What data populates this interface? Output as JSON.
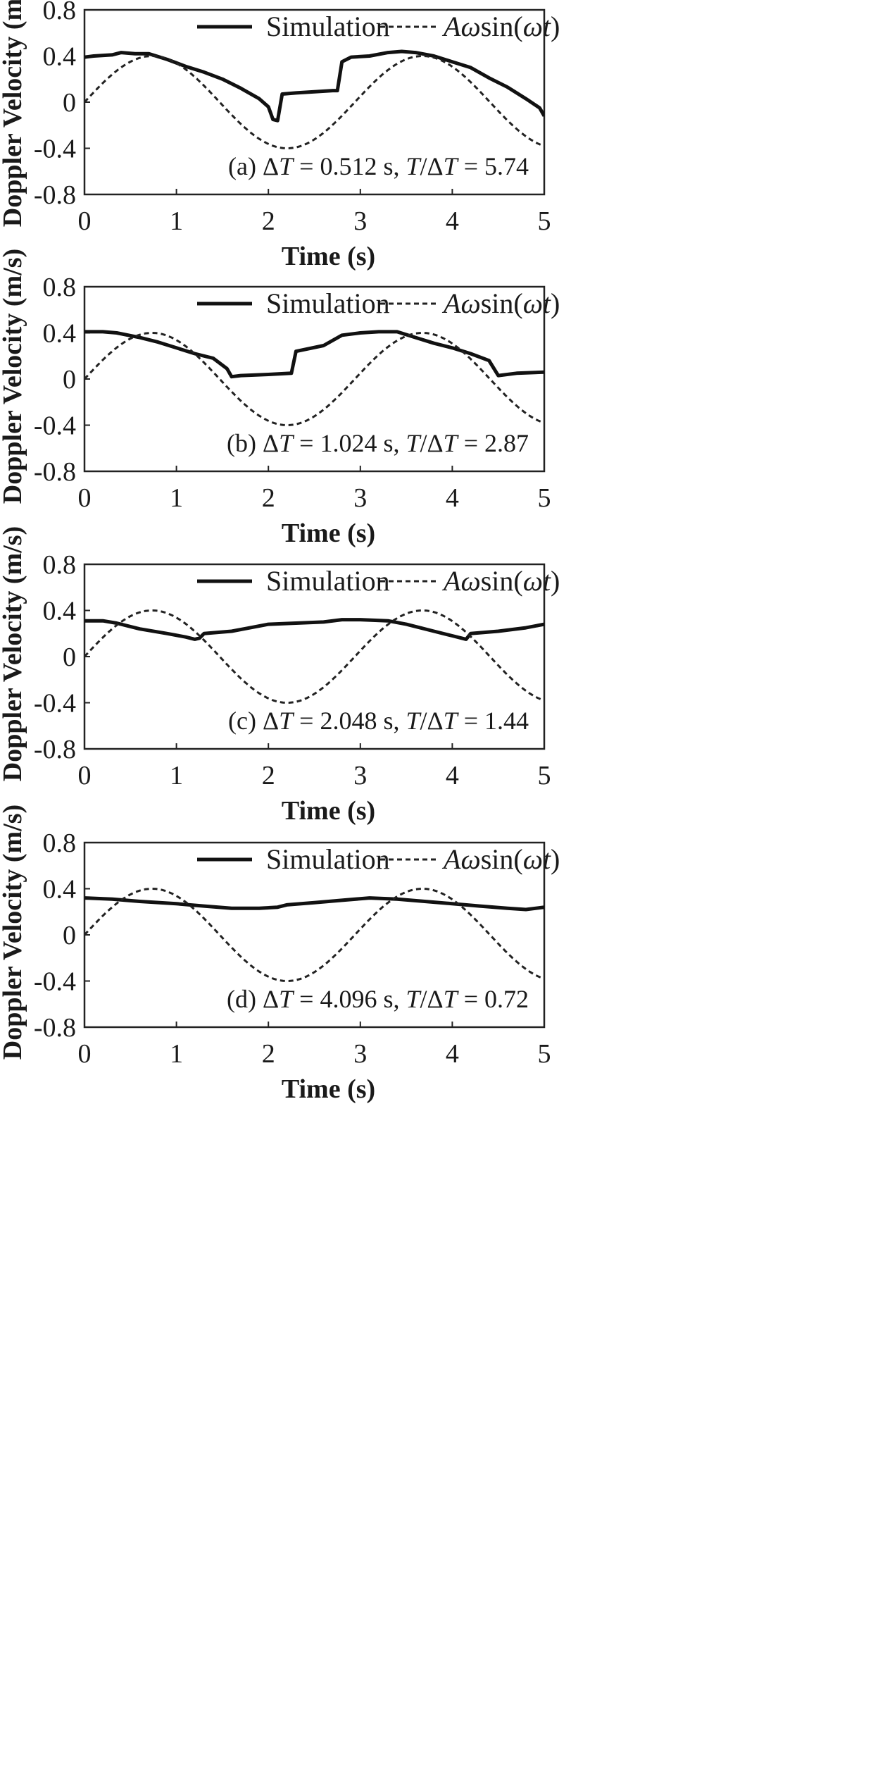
{
  "figure": {
    "legend": {
      "solid_label": "Simulation",
      "dashed_label_parts": [
        {
          "text": "A",
          "italic": true
        },
        {
          "text": "ω",
          "italic": true
        },
        {
          "text": "sin(",
          "italic": false
        },
        {
          "text": "ωt",
          "italic": true
        },
        {
          "text": ")",
          "italic": false
        }
      ]
    },
    "colors": {
      "simulation": "#111111",
      "reference": "#222222",
      "frame": "#222222"
    }
  },
  "chart_data": [
    {
      "type": "line",
      "xlabel": "Time (s)",
      "ylabel": "Doppler Velocity (m/s)",
      "xlim": [
        0,
        5
      ],
      "ylim": [
        -0.8,
        0.8
      ],
      "xticks": [
        "0",
        "1",
        "2",
        "3",
        "4",
        "5"
      ],
      "yticks": [
        "0.8",
        "0.4",
        "0",
        "-0.4",
        "-0.8"
      ],
      "grid": false,
      "legend_position": "top",
      "annotation": "(a) ΔT = 0.512 s, T/ΔT = 5.74",
      "annotation_parts": [
        {
          "text": "(a) ",
          "italic": false
        },
        {
          "text": "Δ",
          "italic": false
        },
        {
          "text": "T",
          "italic": true
        },
        {
          "text": " = 0.512 s, ",
          "italic": false
        },
        {
          "text": "T",
          "italic": true
        },
        {
          "text": "/Δ",
          "italic": false
        },
        {
          "text": "T",
          "italic": true
        },
        {
          "text": " = 5.74",
          "italic": false
        }
      ],
      "series": [
        {
          "name": "Simulation",
          "style": "solid",
          "x": [
            0,
            0.1,
            0.3,
            0.4,
            0.55,
            0.7,
            0.9,
            1.1,
            1.3,
            1.5,
            1.7,
            1.9,
            2.0,
            2.05,
            2.1,
            2.15,
            2.3,
            2.5,
            2.7,
            2.75,
            2.8,
            2.9,
            3.1,
            3.3,
            3.45,
            3.6,
            3.8,
            4.0,
            4.2,
            4.4,
            4.6,
            4.8,
            4.95,
            5.0
          ],
          "y": [
            0.39,
            0.4,
            0.41,
            0.43,
            0.42,
            0.42,
            0.37,
            0.31,
            0.26,
            0.2,
            0.12,
            0.03,
            -0.04,
            -0.15,
            -0.16,
            0.07,
            0.08,
            0.09,
            0.1,
            0.1,
            0.35,
            0.39,
            0.4,
            0.43,
            0.44,
            0.43,
            0.4,
            0.35,
            0.3,
            0.21,
            0.13,
            0.03,
            -0.05,
            -0.12
          ]
        },
        {
          "name": "Aωsin(ωt)",
          "style": "dashed",
          "amplitude": 0.4,
          "period_s": 2.94
        }
      ]
    },
    {
      "type": "line",
      "xlabel": "Time (s)",
      "ylabel": "Doppler Velocity (m/s)",
      "xlim": [
        0,
        5
      ],
      "ylim": [
        -0.8,
        0.8
      ],
      "xticks": [
        "0",
        "1",
        "2",
        "3",
        "4",
        "5"
      ],
      "yticks": [
        "0.8",
        "0.4",
        "0",
        "-0.4",
        "-0.8"
      ],
      "grid": false,
      "legend_position": "top",
      "annotation": "(b) ΔT = 1.024 s, T/ΔT = 2.87",
      "annotation_parts": [
        {
          "text": "(b) ",
          "italic": false
        },
        {
          "text": "Δ",
          "italic": false
        },
        {
          "text": "T",
          "italic": true
        },
        {
          "text": " = 1.024 s, ",
          "italic": false
        },
        {
          "text": "T",
          "italic": true
        },
        {
          "text": "/Δ",
          "italic": false
        },
        {
          "text": "T",
          "italic": true
        },
        {
          "text": " = 2.87",
          "italic": false
        }
      ],
      "series": [
        {
          "name": "Simulation",
          "style": "solid",
          "x": [
            0,
            0.2,
            0.35,
            0.6,
            0.8,
            1.0,
            1.2,
            1.4,
            1.55,
            1.6,
            1.7,
            2.0,
            2.25,
            2.3,
            2.6,
            2.8,
            3.0,
            3.2,
            3.4,
            3.6,
            3.8,
            4.0,
            4.2,
            4.4,
            4.5,
            4.7,
            5.0
          ],
          "y": [
            0.41,
            0.41,
            0.4,
            0.36,
            0.32,
            0.27,
            0.22,
            0.18,
            0.09,
            0.02,
            0.03,
            0.04,
            0.05,
            0.24,
            0.29,
            0.38,
            0.4,
            0.41,
            0.41,
            0.36,
            0.31,
            0.27,
            0.22,
            0.16,
            0.03,
            0.05,
            0.06
          ]
        },
        {
          "name": "Aωsin(ωt)",
          "style": "dashed",
          "amplitude": 0.4,
          "period_s": 2.94
        }
      ]
    },
    {
      "type": "line",
      "xlabel": "Time (s)",
      "ylabel": "Doppler Velocity (m/s)",
      "xlim": [
        0,
        5
      ],
      "ylim": [
        -0.8,
        0.8
      ],
      "xticks": [
        "0",
        "1",
        "2",
        "3",
        "4",
        "5"
      ],
      "yticks": [
        "0.8",
        "0.4",
        "0",
        "-0.4",
        "-0.8"
      ],
      "grid": false,
      "legend_position": "top",
      "annotation": "(c) ΔT = 2.048 s, T/ΔT = 1.44",
      "annotation_parts": [
        {
          "text": "(c) ",
          "italic": false
        },
        {
          "text": "Δ",
          "italic": false
        },
        {
          "text": "T",
          "italic": true
        },
        {
          "text": " = 2.048 s, ",
          "italic": false
        },
        {
          "text": "T",
          "italic": true
        },
        {
          "text": "/Δ",
          "italic": false
        },
        {
          "text": "T",
          "italic": true
        },
        {
          "text": " = 1.44",
          "italic": false
        }
      ],
      "series": [
        {
          "name": "Simulation",
          "style": "solid",
          "x": [
            0,
            0.2,
            0.35,
            0.6,
            0.9,
            1.1,
            1.2,
            1.25,
            1.3,
            1.6,
            1.8,
            2.0,
            2.3,
            2.6,
            2.8,
            3.0,
            3.3,
            3.5,
            3.8,
            4.0,
            4.15,
            4.2,
            4.5,
            4.8,
            5.0
          ],
          "y": [
            0.31,
            0.31,
            0.29,
            0.24,
            0.2,
            0.17,
            0.15,
            0.16,
            0.2,
            0.22,
            0.25,
            0.28,
            0.29,
            0.3,
            0.32,
            0.32,
            0.31,
            0.28,
            0.22,
            0.18,
            0.15,
            0.2,
            0.22,
            0.25,
            0.28
          ]
        },
        {
          "name": "Aωsin(ωt)",
          "style": "dashed",
          "amplitude": 0.4,
          "period_s": 2.94
        }
      ]
    },
    {
      "type": "line",
      "xlabel": "Time (s)",
      "ylabel": "Doppler Velocity (m/s)",
      "xlim": [
        0,
        5
      ],
      "ylim": [
        -0.8,
        0.8
      ],
      "xticks": [
        "0",
        "1",
        "2",
        "3",
        "4",
        "5"
      ],
      "yticks": [
        "0.8",
        "0.4",
        "0",
        "-0.4",
        "-0.8"
      ],
      "grid": false,
      "legend_position": "top",
      "annotation": "(d) ΔT = 4.096 s, T/ΔT = 0.72",
      "annotation_parts": [
        {
          "text": "(d) ",
          "italic": false
        },
        {
          "text": "Δ",
          "italic": false
        },
        {
          "text": "T",
          "italic": true
        },
        {
          "text": " = 4.096 s, ",
          "italic": false
        },
        {
          "text": "T",
          "italic": true
        },
        {
          "text": "/Δ",
          "italic": false
        },
        {
          "text": "T",
          "italic": true
        },
        {
          "text": " = 0.72",
          "italic": false
        }
      ],
      "series": [
        {
          "name": "Simulation",
          "style": "solid",
          "x": [
            0,
            0.3,
            0.6,
            1.0,
            1.3,
            1.6,
            1.9,
            2.1,
            2.2,
            2.5,
            2.8,
            3.1,
            3.4,
            3.7,
            4.0,
            4.3,
            4.6,
            4.8,
            5.0
          ],
          "y": [
            0.32,
            0.31,
            0.29,
            0.27,
            0.25,
            0.23,
            0.23,
            0.24,
            0.26,
            0.28,
            0.3,
            0.32,
            0.31,
            0.29,
            0.27,
            0.25,
            0.23,
            0.22,
            0.24
          ]
        },
        {
          "name": "Aωsin(ωt)",
          "style": "dashed",
          "amplitude": 0.4,
          "period_s": 2.94
        }
      ]
    }
  ]
}
